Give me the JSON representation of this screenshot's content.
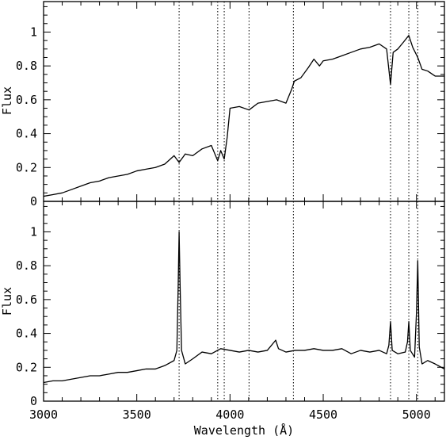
{
  "chart_data": [
    {
      "type": "line",
      "panel": "top",
      "ylabel": "Flux",
      "xlabel": "",
      "xlim": [
        3000,
        5150
      ],
      "ylim": [
        0,
        1.18
      ],
      "xticks": [
        3000,
        3500,
        4000,
        4500,
        5000
      ],
      "yticks": [
        0,
        0.2,
        0.4,
        0.6,
        0.8,
        1
      ],
      "ytick_labels": [
        "0",
        "0.2",
        "0.4",
        "0.6",
        "0.8",
        "1"
      ],
      "line_color": "#000000",
      "reference_lines_x": [
        3727,
        3934,
        3969,
        4102,
        4340,
        4861,
        4959,
        5007
      ],
      "series": [
        {
          "x": [
            3000,
            3050,
            3100,
            3150,
            3200,
            3250,
            3300,
            3350,
            3400,
            3450,
            3500,
            3550,
            3600,
            3650,
            3700,
            3727,
            3760,
            3800,
            3850,
            3900,
            3934,
            3950,
            3969,
            3985,
            4000,
            4050,
            4102,
            4150,
            4200,
            4250,
            4300,
            4330,
            4345,
            4380,
            4420,
            4450,
            4480,
            4500,
            4550,
            4600,
            4650,
            4700,
            4750,
            4800,
            4840,
            4861,
            4875,
            4900,
            4930,
            4959,
            4980,
            5007,
            5030,
            5060,
            5100,
            5150
          ],
          "y": [
            0.03,
            0.04,
            0.05,
            0.07,
            0.09,
            0.11,
            0.12,
            0.14,
            0.15,
            0.16,
            0.18,
            0.19,
            0.2,
            0.22,
            0.27,
            0.23,
            0.28,
            0.27,
            0.31,
            0.33,
            0.24,
            0.3,
            0.25,
            0.38,
            0.55,
            0.56,
            0.54,
            0.58,
            0.59,
            0.6,
            0.58,
            0.66,
            0.71,
            0.73,
            0.79,
            0.84,
            0.8,
            0.83,
            0.84,
            0.86,
            0.88,
            0.9,
            0.91,
            0.93,
            0.9,
            0.69,
            0.88,
            0.9,
            0.94,
            0.98,
            0.91,
            0.85,
            0.78,
            0.77,
            0.74,
            0.74
          ]
        }
      ]
    },
    {
      "type": "line",
      "panel": "bottom",
      "ylabel": "Flux",
      "xlabel": "Wavelength (Å)",
      "xlim": [
        3000,
        5150
      ],
      "ylim": [
        0,
        1.18
      ],
      "xticks": [
        3000,
        3500,
        4000,
        4500,
        5000
      ],
      "xtick_labels": [
        "3000",
        "3500",
        "4000",
        "4500",
        "5000"
      ],
      "yticks": [
        0,
        0.2,
        0.4,
        0.6,
        0.8,
        1
      ],
      "ytick_labels": [
        "0",
        "0.2",
        "0.4",
        "0.6",
        "0.8",
        "1"
      ],
      "line_color": "#000000",
      "reference_lines_x": [
        3727,
        3934,
        3969,
        4102,
        4340,
        4861,
        4959,
        5007
      ],
      "series": [
        {
          "x": [
            3000,
            3050,
            3100,
            3150,
            3200,
            3250,
            3300,
            3350,
            3400,
            3450,
            3500,
            3550,
            3600,
            3650,
            3700,
            3715,
            3722,
            3727,
            3732,
            3740,
            3760,
            3800,
            3850,
            3900,
            3950,
            4000,
            4050,
            4100,
            4150,
            4200,
            4245,
            4260,
            4300,
            4350,
            4400,
            4450,
            4500,
            4550,
            4600,
            4650,
            4700,
            4750,
            4800,
            4840,
            4852,
            4861,
            4870,
            4900,
            4940,
            4952,
            4959,
            4967,
            4990,
            5000,
            5007,
            5015,
            5030,
            5060,
            5100,
            5150
          ],
          "y": [
            0.11,
            0.12,
            0.12,
            0.13,
            0.14,
            0.15,
            0.15,
            0.16,
            0.17,
            0.17,
            0.18,
            0.19,
            0.19,
            0.21,
            0.24,
            0.3,
            0.68,
            1.0,
            0.7,
            0.3,
            0.22,
            0.25,
            0.29,
            0.28,
            0.31,
            0.3,
            0.29,
            0.3,
            0.29,
            0.3,
            0.36,
            0.31,
            0.29,
            0.3,
            0.3,
            0.31,
            0.3,
            0.3,
            0.31,
            0.28,
            0.3,
            0.29,
            0.3,
            0.28,
            0.33,
            0.47,
            0.3,
            0.28,
            0.29,
            0.35,
            0.47,
            0.3,
            0.26,
            0.52,
            0.83,
            0.32,
            0.22,
            0.24,
            0.22,
            0.19
          ]
        }
      ]
    }
  ]
}
